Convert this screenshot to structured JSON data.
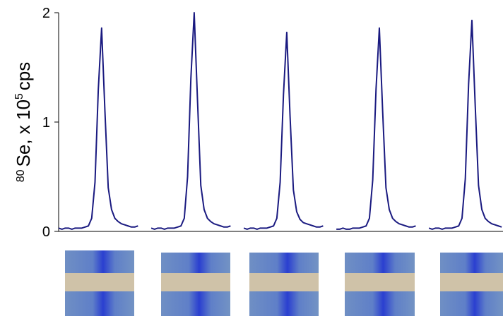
{
  "chart_data": {
    "type": "line",
    "ylabel": [
      "80",
      "Se, x 10",
      "5",
      "cps"
    ],
    "ylim": [
      0,
      2
    ],
    "yticks": [
      0,
      1,
      2
    ],
    "series": [
      {
        "color": "#1a1a80",
        "values": [
          0.03,
          0.02,
          0.03,
          0.03,
          0.02,
          0.03,
          0.03,
          0.03,
          0.04,
          0.05,
          0.12,
          0.45,
          1.3,
          1.86,
          1.1,
          0.4,
          0.2,
          0.12,
          0.09,
          0.07,
          0.06,
          0.05,
          0.04,
          0.04,
          0.05,
          null,
          null,
          null,
          0.03,
          0.02,
          0.03,
          0.03,
          0.02,
          0.03,
          0.03,
          0.03,
          0.04,
          0.05,
          0.12,
          0.5,
          1.4,
          2.0,
          1.2,
          0.42,
          0.2,
          0.12,
          0.09,
          0.07,
          0.06,
          0.05,
          0.04,
          0.04,
          0.05,
          null,
          null,
          null,
          0.03,
          0.02,
          0.03,
          0.03,
          0.02,
          0.03,
          0.03,
          0.03,
          0.04,
          0.05,
          0.12,
          0.45,
          1.25,
          1.82,
          1.05,
          0.38,
          0.18,
          0.11,
          0.08,
          0.07,
          0.06,
          0.05,
          0.04,
          0.04,
          0.05,
          null,
          null,
          null,
          0.02,
          0.02,
          0.03,
          0.02,
          0.02,
          0.03,
          0.03,
          0.03,
          0.04,
          0.05,
          0.12,
          0.47,
          1.3,
          1.86,
          1.1,
          0.4,
          0.2,
          0.12,
          0.09,
          0.07,
          0.06,
          0.05,
          0.04,
          0.04,
          0.05,
          null,
          null,
          null,
          0.03,
          0.02,
          0.03,
          0.03,
          0.02,
          0.03,
          0.03,
          0.03,
          0.04,
          0.05,
          0.12,
          0.48,
          1.35,
          1.93,
          1.15,
          0.42,
          0.2,
          0.12,
          0.09,
          0.07,
          0.06,
          0.05,
          0.04
        ]
      }
    ]
  }
}
